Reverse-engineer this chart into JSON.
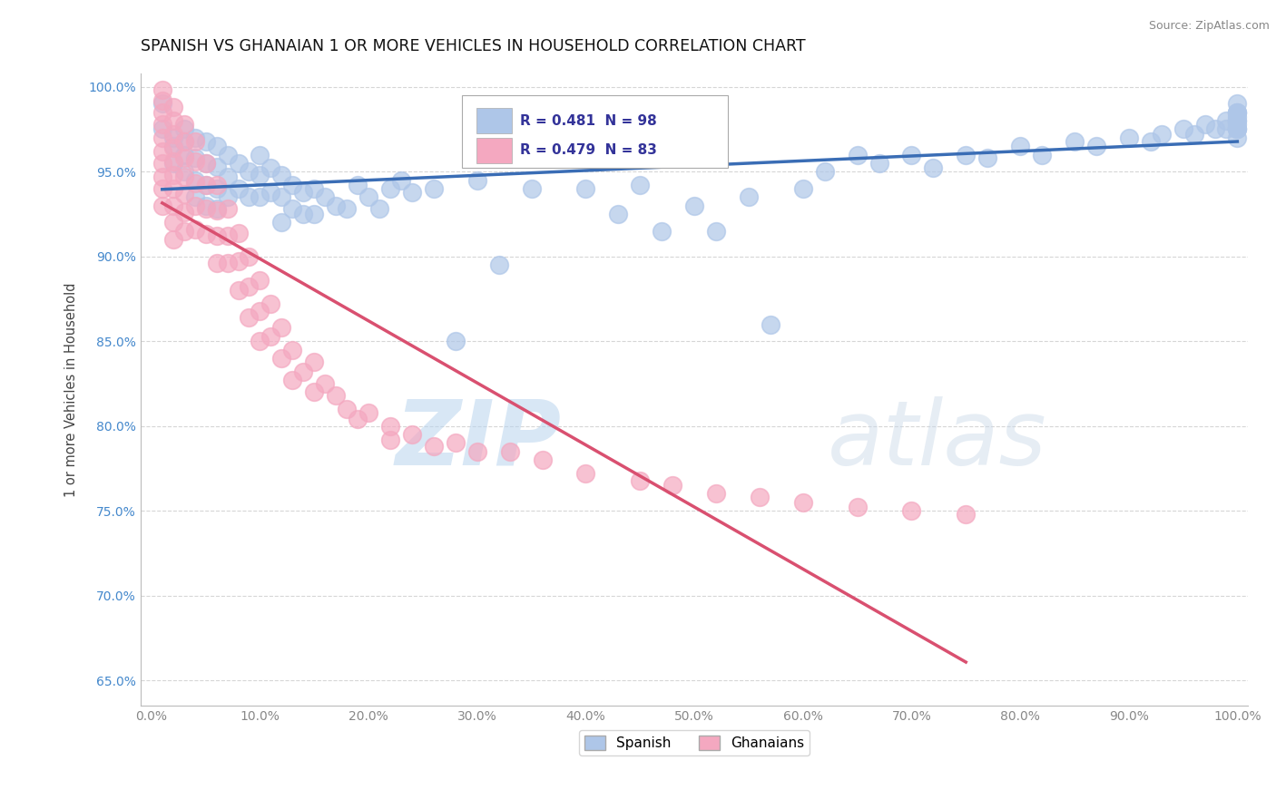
{
  "title": "SPANISH VS GHANAIAN 1 OR MORE VEHICLES IN HOUSEHOLD CORRELATION CHART",
  "ylabel": "1 or more Vehicles in Household",
  "source": "Source: ZipAtlas.com",
  "xlim": [
    -0.01,
    1.01
  ],
  "ylim": [
    0.635,
    1.008
  ],
  "yticks": [
    0.65,
    0.7,
    0.75,
    0.8,
    0.85,
    0.9,
    0.95,
    1.0
  ],
  "ytick_labels": [
    "65.0%",
    "70.0%",
    "75.0%",
    "80.0%",
    "85.0%",
    "90.0%",
    "95.0%",
    "100.0%"
  ],
  "xticks": [
    0.0,
    0.1,
    0.2,
    0.3,
    0.4,
    0.5,
    0.6,
    0.7,
    0.8,
    0.9,
    1.0
  ],
  "xtick_labels": [
    "0.0%",
    "10.0%",
    "20.0%",
    "30.0%",
    "40.0%",
    "50.0%",
    "60.0%",
    "70.0%",
    "80.0%",
    "90.0%",
    "100.0%"
  ],
  "spanish_R": 0.481,
  "spanish_N": 98,
  "ghanaian_R": 0.479,
  "ghanaian_N": 83,
  "spanish_color": "#aec6e8",
  "ghanaian_color": "#f4a8c0",
  "spanish_line_color": "#3a6db5",
  "ghanaian_line_color": "#d95070",
  "watermark_zip": "ZIP",
  "watermark_atlas": "atlas",
  "background_color": "#ffffff",
  "spanish_x": [
    0.01,
    0.01,
    0.02,
    0.02,
    0.02,
    0.03,
    0.03,
    0.03,
    0.03,
    0.04,
    0.04,
    0.04,
    0.04,
    0.05,
    0.05,
    0.05,
    0.05,
    0.06,
    0.06,
    0.06,
    0.06,
    0.07,
    0.07,
    0.07,
    0.08,
    0.08,
    0.09,
    0.09,
    0.1,
    0.1,
    0.1,
    0.11,
    0.11,
    0.12,
    0.12,
    0.12,
    0.13,
    0.13,
    0.14,
    0.14,
    0.15,
    0.15,
    0.16,
    0.17,
    0.18,
    0.19,
    0.2,
    0.21,
    0.22,
    0.23,
    0.24,
    0.26,
    0.28,
    0.3,
    0.32,
    0.35,
    0.38,
    0.4,
    0.43,
    0.45,
    0.47,
    0.5,
    0.52,
    0.55,
    0.57,
    0.6,
    0.62,
    0.65,
    0.67,
    0.7,
    0.72,
    0.75,
    0.77,
    0.8,
    0.82,
    0.85,
    0.87,
    0.9,
    0.92,
    0.93,
    0.95,
    0.96,
    0.97,
    0.98,
    0.99,
    0.99,
    1.0,
    1.0,
    1.0,
    1.0,
    1.0,
    1.0,
    1.0,
    1.0,
    1.0,
    1.0,
    1.0,
    1.0
  ],
  "spanish_y": [
    0.975,
    0.99,
    0.965,
    0.955,
    0.97,
    0.975,
    0.968,
    0.96,
    0.95,
    0.97,
    0.958,
    0.945,
    0.935,
    0.968,
    0.955,
    0.942,
    0.93,
    0.965,
    0.953,
    0.94,
    0.928,
    0.96,
    0.947,
    0.935,
    0.955,
    0.94,
    0.95,
    0.935,
    0.96,
    0.948,
    0.935,
    0.952,
    0.938,
    0.948,
    0.935,
    0.92,
    0.942,
    0.928,
    0.938,
    0.925,
    0.94,
    0.925,
    0.935,
    0.93,
    0.928,
    0.942,
    0.935,
    0.928,
    0.94,
    0.945,
    0.938,
    0.94,
    0.85,
    0.945,
    0.895,
    0.94,
    0.965,
    0.94,
    0.925,
    0.942,
    0.915,
    0.93,
    0.915,
    0.935,
    0.86,
    0.94,
    0.95,
    0.96,
    0.955,
    0.96,
    0.952,
    0.96,
    0.958,
    0.965,
    0.96,
    0.968,
    0.965,
    0.97,
    0.968,
    0.972,
    0.975,
    0.972,
    0.978,
    0.975,
    0.98,
    0.975,
    0.97,
    0.975,
    0.978,
    0.982,
    0.985,
    0.975,
    0.98,
    0.985,
    0.975,
    0.98,
    0.985,
    0.99
  ],
  "ghanaian_x": [
    0.01,
    0.01,
    0.01,
    0.01,
    0.01,
    0.01,
    0.01,
    0.01,
    0.01,
    0.01,
    0.02,
    0.02,
    0.02,
    0.02,
    0.02,
    0.02,
    0.02,
    0.02,
    0.02,
    0.02,
    0.03,
    0.03,
    0.03,
    0.03,
    0.03,
    0.03,
    0.03,
    0.04,
    0.04,
    0.04,
    0.04,
    0.04,
    0.05,
    0.05,
    0.05,
    0.05,
    0.06,
    0.06,
    0.06,
    0.06,
    0.07,
    0.07,
    0.07,
    0.08,
    0.08,
    0.08,
    0.09,
    0.09,
    0.09,
    0.1,
    0.1,
    0.1,
    0.11,
    0.11,
    0.12,
    0.12,
    0.13,
    0.13,
    0.14,
    0.15,
    0.15,
    0.16,
    0.17,
    0.18,
    0.19,
    0.2,
    0.22,
    0.22,
    0.24,
    0.26,
    0.28,
    0.3,
    0.33,
    0.36,
    0.4,
    0.45,
    0.48,
    0.52,
    0.56,
    0.6,
    0.65,
    0.7,
    0.75
  ],
  "ghanaian_y": [
    0.998,
    0.992,
    0.985,
    0.978,
    0.97,
    0.962,
    0.955,
    0.947,
    0.94,
    0.93,
    0.988,
    0.98,
    0.972,
    0.964,
    0.956,
    0.948,
    0.94,
    0.93,
    0.92,
    0.91,
    0.978,
    0.968,
    0.958,
    0.947,
    0.937,
    0.926,
    0.915,
    0.968,
    0.956,
    0.943,
    0.93,
    0.916,
    0.955,
    0.942,
    0.928,
    0.913,
    0.942,
    0.927,
    0.912,
    0.896,
    0.928,
    0.912,
    0.896,
    0.914,
    0.897,
    0.88,
    0.9,
    0.882,
    0.864,
    0.886,
    0.868,
    0.85,
    0.872,
    0.853,
    0.858,
    0.84,
    0.845,
    0.827,
    0.832,
    0.838,
    0.82,
    0.825,
    0.818,
    0.81,
    0.804,
    0.808,
    0.8,
    0.792,
    0.795,
    0.788,
    0.79,
    0.785,
    0.785,
    0.78,
    0.772,
    0.768,
    0.765,
    0.76,
    0.758,
    0.755,
    0.752,
    0.75,
    0.748
  ]
}
